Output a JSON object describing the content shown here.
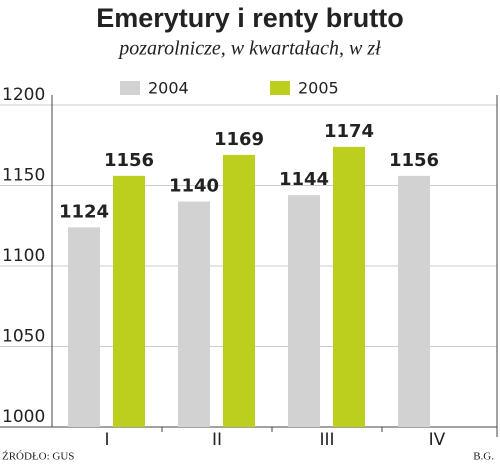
{
  "chart_data": {
    "type": "bar",
    "title": "Emerytury i renty brutto",
    "subtitle": "pozarolnicze, w kwartałach, w zł",
    "source": "ŹRÓDŁO: GUS",
    "author": "B.G.",
    "categories": [
      "I",
      "II",
      "III",
      "IV"
    ],
    "series": [
      {
        "name": "2004",
        "color": "#d2d2d2",
        "values": [
          1124,
          1140,
          1144,
          1156
        ]
      },
      {
        "name": "2005",
        "color": "#bccf1e",
        "values": [
          1156,
          1169,
          1174,
          null
        ]
      }
    ],
    "ylim": [
      1000,
      1200
    ],
    "yticks": [
      1000,
      1050,
      1100,
      1150,
      1200
    ],
    "grid": true
  }
}
